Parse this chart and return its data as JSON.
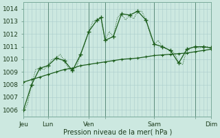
{
  "bg_color": "#cce8e0",
  "grid_color": "#aacccc",
  "line_color": "#1a5c1a",
  "ylabel_text": "Pression niveau de la mer( hPa )",
  "ylim": [
    1005.5,
    1014.5
  ],
  "yticks": [
    1006,
    1007,
    1008,
    1009,
    1010,
    1011,
    1012,
    1013,
    1014
  ],
  "series_jagged_x": [
    0,
    12,
    24,
    36,
    48,
    60,
    72,
    84,
    96,
    108,
    114,
    120,
    132,
    144,
    156,
    168,
    180,
    192,
    204,
    216,
    228,
    240,
    252,
    264,
    276
  ],
  "series_jagged_y": [
    1006.0,
    1008.0,
    1009.3,
    1009.5,
    1010.1,
    1009.9,
    1009.1,
    1010.4,
    1012.2,
    1013.1,
    1013.3,
    1011.5,
    1011.8,
    1013.6,
    1013.5,
    1013.8,
    1013.1,
    1011.2,
    1011.0,
    1010.7,
    1009.7,
    1010.8,
    1011.0,
    1011.0,
    1010.9
  ],
  "series_dense_x": [
    0,
    6,
    12,
    18,
    24,
    30,
    36,
    42,
    48,
    54,
    60,
    66,
    72,
    78,
    84,
    90,
    96,
    102,
    108,
    114,
    120,
    126,
    132,
    138,
    144,
    150,
    156,
    162,
    168,
    174,
    180,
    186,
    192,
    198,
    204,
    210,
    216,
    222,
    228,
    234,
    240,
    246,
    252,
    258,
    264,
    270,
    276
  ],
  "series_dense_y": [
    1005.8,
    1006.5,
    1008.0,
    1009.2,
    1009.3,
    1009.2,
    1009.5,
    1010.0,
    1010.1,
    1010.4,
    1009.9,
    1009.3,
    1009.1,
    1009.4,
    1010.4,
    1011.2,
    1012.2,
    1013.0,
    1013.1,
    1013.3,
    1011.5,
    1012.2,
    1011.8,
    1013.3,
    1013.6,
    1013.1,
    1013.5,
    1013.2,
    1013.8,
    1013.8,
    1013.1,
    1012.0,
    1011.2,
    1011.5,
    1011.0,
    1010.8,
    1010.7,
    1010.5,
    1009.7,
    1009.6,
    1010.8,
    1010.9,
    1011.0,
    1010.9,
    1011.0,
    1011.0,
    1010.9
  ],
  "series_trend_x": [
    0,
    12,
    24,
    36,
    48,
    60,
    72,
    84,
    96,
    108,
    120,
    132,
    144,
    156,
    168,
    180,
    192,
    204,
    216,
    228,
    240,
    252,
    264,
    276
  ],
  "series_trend_y": [
    1008.2,
    1008.4,
    1008.6,
    1008.8,
    1009.0,
    1009.2,
    1009.3,
    1009.5,
    1009.6,
    1009.7,
    1009.8,
    1009.9,
    1010.0,
    1010.05,
    1010.1,
    1010.2,
    1010.3,
    1010.35,
    1010.4,
    1010.45,
    1010.5,
    1010.6,
    1010.7,
    1010.8
  ],
  "vline_positions": [
    36,
    96,
    120,
    192,
    252
  ],
  "xtick_positions": [
    0,
    36,
    96,
    120,
    192,
    252,
    276
  ],
  "xtick_labels": [
    "Jeu",
    "Lun",
    "Ven",
    "",
    "Sam",
    "",
    "Dim"
  ]
}
